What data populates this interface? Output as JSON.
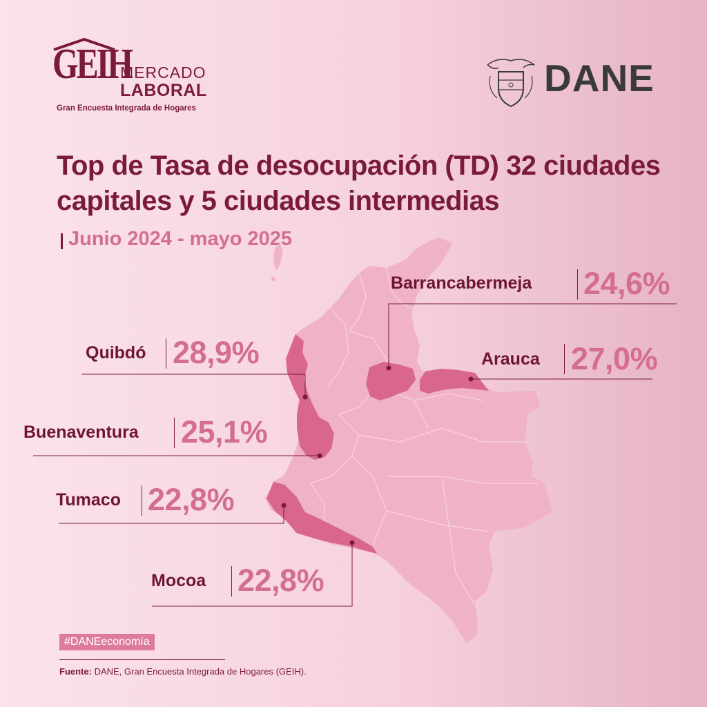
{
  "header": {
    "geih_mark": "GEIH",
    "geih_line1": "MERCADO",
    "geih_line2": "LABORAL",
    "geih_subtitle": "Gran Encuesta Integrada de Hogares",
    "dane": "DANE"
  },
  "title": "Top de Tasa de desocupación (TD) 32 ciudades capitales y 5 ciudades intermedias",
  "period": "Junio 2024 - mayo 2025",
  "cities": [
    {
      "name": "Barrancabermeja",
      "value": "24,6%"
    },
    {
      "name": "Quibdó",
      "value": "28,9%"
    },
    {
      "name": "Arauca",
      "value": "27,0%"
    },
    {
      "name": "Buenaventura",
      "value": "25,1%"
    },
    {
      "name": "Tumaco",
      "value": "22,8%"
    },
    {
      "name": "Mocoa",
      "value": "22,8%"
    }
  ],
  "colors": {
    "wine": "#7a1a3c",
    "accent_pink": "#d36e92",
    "map_base": "#efb2c6",
    "map_highlight": "#d9678d"
  },
  "footer": {
    "hashtag": "#DANEeconomía",
    "source_label": "Fuente:",
    "source_text": " DANE, Gran Encuesta Integrada de Hogares (GEIH)."
  }
}
